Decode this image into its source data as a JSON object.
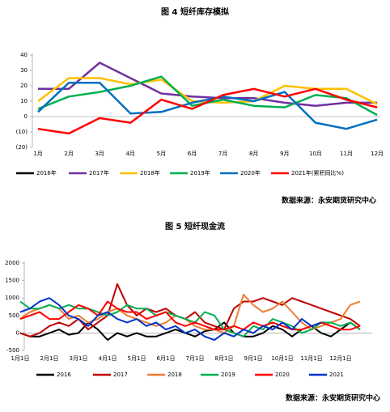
{
  "chart_data": [
    {
      "type": "line",
      "title": "图 4 短纤库存模拟",
      "source": "数据来源：永安期货研究中心",
      "categories": [
        "1月",
        "2月",
        "3月",
        "4月",
        "5月",
        "6月",
        "7月",
        "8月",
        "9月",
        "10月",
        "11月",
        "12月"
      ],
      "ylim": [
        -20,
        40
      ],
      "yticks": [
        40,
        30,
        20,
        10,
        0,
        {
          "value": -10,
          "label": "(10)"
        },
        {
          "value": -20,
          "label": "(20)"
        }
      ],
      "series": [
        {
          "name": "2016年",
          "color": "#000000",
          "values": [
            null,
            null,
            null,
            null,
            null,
            null,
            null,
            null,
            null,
            null,
            null,
            null
          ]
        },
        {
          "name": "2017年",
          "color": "#7030a0",
          "values": [
            18,
            18,
            35,
            25,
            15,
            13,
            12,
            12,
            9,
            7,
            9,
            9
          ]
        },
        {
          "name": "2018年",
          "color": "#ffc000",
          "values": [
            10,
            25,
            25,
            21,
            24,
            10,
            9,
            10,
            20,
            18,
            18,
            8
          ]
        },
        {
          "name": "2019年",
          "color": "#00b050",
          "values": [
            5,
            13,
            16,
            20,
            26,
            7,
            11,
            7,
            6,
            14,
            12,
            1
          ]
        },
        {
          "name": "2020年",
          "color": "#0070c0",
          "values": [
            3,
            22,
            22,
            2,
            3,
            9,
            13,
            10,
            16,
            -4,
            -8,
            -2
          ]
        },
        {
          "name": "2021年(累积同比%)",
          "color": "#ff0000",
          "values": [
            -8,
            -11,
            -1,
            -4,
            11,
            5,
            14,
            18,
            13,
            18,
            11,
            6
          ]
        }
      ]
    },
    {
      "type": "line",
      "title": "图 5 短纤现金流",
      "source": "数据来源：永安期货研究中心",
      "categories": [
        "1月1日",
        null,
        null,
        "2月1日",
        null,
        null,
        "3月1日",
        null,
        null,
        "4月1日",
        null,
        null,
        "5月1日",
        null,
        null,
        "6月1日",
        null,
        null,
        "7月1日",
        null,
        null,
        "8月1日",
        null,
        null,
        "9月1日",
        null,
        null,
        "10月1日",
        null,
        null,
        "11月1日",
        null,
        null,
        "12月1日",
        null,
        null
      ],
      "ylim": [
        -500,
        2000
      ],
      "yticks": [
        2000,
        1500,
        1000,
        500,
        0,
        -500
      ],
      "series": [
        {
          "name": "2016",
          "color": "#000000",
          "values": [
            0,
            -100,
            -100,
            0,
            100,
            -50,
            0,
            300,
            100,
            -200,
            0,
            -100,
            0,
            -100,
            -100,
            0,
            100,
            0,
            -100,
            50,
            100,
            300,
            0,
            -100,
            -100,
            0,
            200,
            100,
            -100,
            100,
            200,
            0,
            -100,
            100,
            300,
            100
          ]
        },
        {
          "name": "2017",
          "color": "#c00000",
          "values": [
            0,
            -100,
            0,
            200,
            300,
            200,
            400,
            100,
            300,
            500,
            1400,
            800,
            500,
            700,
            600,
            700,
            500,
            400,
            600,
            300,
            200,
            100,
            700,
            900,
            900,
            1000,
            900,
            800,
            1000,
            900,
            800,
            700,
            600,
            500,
            400,
            200
          ]
        },
        {
          "name": "2018",
          "color": "#ed7d31",
          "values": [
            400,
            600,
            700,
            800,
            700,
            400,
            500,
            300,
            400,
            600,
            700,
            500,
            400,
            300,
            200,
            300,
            500,
            400,
            200,
            100,
            100,
            0,
            200,
            1100,
            800,
            600,
            700,
            900,
            600,
            300,
            100,
            200,
            300,
            400,
            800,
            900
          ]
        },
        {
          "name": "2019",
          "color": "#00b050",
          "values": [
            900,
            700,
            700,
            800,
            700,
            800,
            700,
            700,
            600,
            500,
            600,
            800,
            700,
            700,
            500,
            600,
            500,
            400,
            300,
            600,
            500,
            100,
            0,
            -100,
            200,
            100,
            400,
            300,
            200,
            0,
            100,
            300,
            300,
            200,
            300,
            100
          ]
        },
        {
          "name": "2020",
          "color": "#ff0000",
          "values": [
            400,
            500,
            600,
            400,
            400,
            600,
            800,
            700,
            500,
            900,
            700,
            600,
            600,
            400,
            500,
            600,
            300,
            200,
            300,
            200,
            100,
            100,
            200,
            100,
            300,
            200,
            300,
            200,
            100,
            100,
            200,
            300,
            200,
            100,
            100,
            200
          ]
        },
        {
          "name": "2021",
          "color": "#0033cc",
          "values": [
            600,
            700,
            900,
            1000,
            800,
            500,
            400,
            200,
            500,
            600,
            400,
            300,
            400,
            200,
            300,
            100,
            200,
            0,
            100,
            -100,
            -200,
            0,
            -100,
            100,
            0,
            200,
            100,
            300,
            100,
            400,
            200,
            300,
            null,
            null,
            null,
            null
          ]
        }
      ]
    }
  ]
}
